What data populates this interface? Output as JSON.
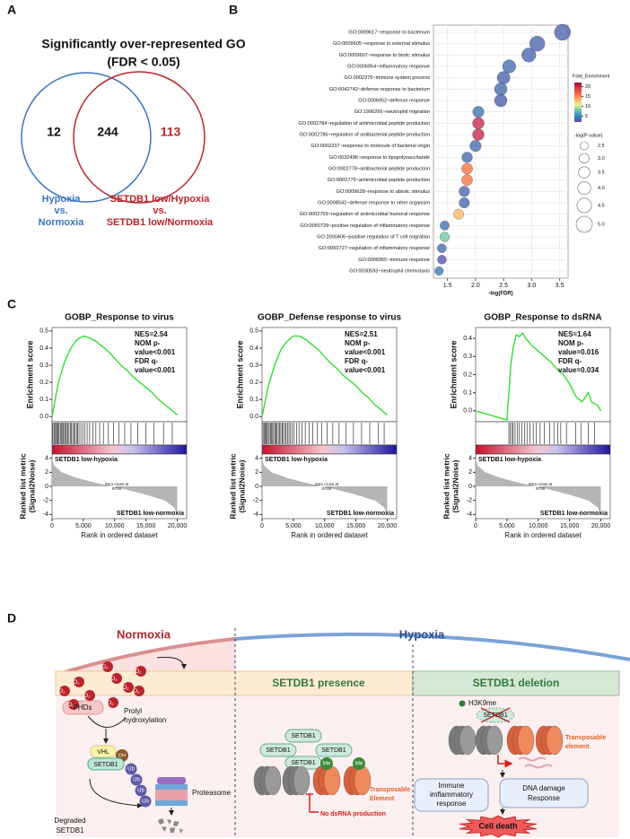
{
  "panel_labels": [
    "A",
    "B",
    "C",
    "D"
  ],
  "venn": {
    "title": "Significantly over-represented GO",
    "subtitle": "(FDR < 0.05)",
    "counts": [
      12,
      244,
      113
    ],
    "left_label": [
      "Hypoxia",
      "vs.",
      "Normoxia"
    ],
    "right_label": [
      "SETDB1 low/Hypoxia",
      "vs.",
      "SETDB1 low/Normoxia"
    ]
  },
  "chart_data": [
    {
      "type": "bubble",
      "categories": [
        "GO:0009617~response to bacterium",
        "GO:0009605~response to external stimulus",
        "GO:0009607~response to biotic stimulus",
        "GO:0006954~inflammatory response",
        "GO:0002376~immune system process",
        "GO:0042742~defense response to bacterium",
        "GO:0006952~defense response",
        "GO:1990266~neutrophil migration",
        "GO:0002784~regulation of antimicrobial peptide production",
        "GO:0002786~regulation of antibacterial peptide production",
        "GO:0002237~response to molecule of bacterial origin",
        "GO:0032496~response to lipopolysaccharide",
        "GO:0002778~antibacterial peptide production",
        "GO:0002775~antimicrobial peptide production",
        "GO:0009628~response to abiotic stimulus",
        "GO:0098542~defense response to other organism",
        "GO:0002759~regulation of antimicrobial humoral response",
        "GO:0050729~positive regulation of inflammatory response",
        "GO:2000406~positive regulation of T cell migration",
        "GO:0050727~regulation of inflammatory response",
        "GO:0006955~immune response",
        "GO:0030593~neutrophil chemotaxis"
      ],
      "values": [
        3.55,
        3.1,
        2.95,
        2.6,
        2.5,
        2.45,
        2.45,
        2.05,
        2.05,
        2.05,
        2.0,
        1.85,
        1.85,
        1.85,
        1.8,
        1.8,
        1.7,
        1.45,
        1.45,
        1.4,
        1.4,
        1.35
      ],
      "size": [
        5.0,
        4.7,
        4.4,
        4.1,
        4.0,
        3.9,
        3.9,
        3.5,
        3.6,
        3.6,
        3.5,
        3.3,
        3.4,
        3.4,
        3.3,
        3.2,
        3.2,
        2.9,
        3.0,
        2.8,
        2.8,
        2.7
      ],
      "fold_enrichment": [
        3,
        3.2,
        3.1,
        3.6,
        3,
        3.5,
        3,
        4,
        20,
        20,
        3.5,
        3.5,
        16,
        16,
        3.4,
        3.2,
        13,
        4,
        8,
        3.5,
        2.5,
        4
      ],
      "xlabel": "-log(FDR)",
      "xlim": [
        1.25,
        3.65
      ],
      "xticks": [
        1.5,
        {
          "value": 2,
          "label": "2.0"
        },
        2.5,
        {
          "value": 3,
          "label": "3.0"
        },
        3.5
      ],
      "grid": true,
      "color_title": "Fold_Enrichment",
      "clim": [
        2,
        22
      ],
      "cticks": [
        5,
        10,
        15,
        20
      ],
      "colormap": [
        "#5e4fa2",
        "#3288bd",
        "#66c2a5",
        "#e6f598",
        "#fdae61",
        "#f46d43",
        "#d53e4f",
        "#9e0142"
      ],
      "size_title": "-log(P-value)",
      "size_ticks": [
        2.5,
        {
          "value": 3,
          "label": "3.0"
        },
        3.5,
        {
          "value": 4,
          "label": "4.0"
        },
        4.5,
        {
          "value": 5,
          "label": "5.0"
        }
      ]
    },
    {
      "type": "gsea",
      "title": "GOBP_Response to virus",
      "stats": [
        "NES=2.54",
        "NOM p-",
        "value<0.001",
        "FDR q-",
        "value<0.001"
      ],
      "ylabel": "Enrichment score",
      "color": "#22dd22",
      "x": [
        0,
        1000,
        2000,
        3000,
        4000,
        5000,
        6000,
        7000,
        8000,
        9000,
        10000,
        11000,
        12000,
        13000,
        14000,
        15000,
        16000,
        17000,
        18000,
        19000,
        20000
      ],
      "values": [
        0,
        0.2,
        0.32,
        0.4,
        0.45,
        0.47,
        0.46,
        0.44,
        0.41,
        0.38,
        0.34,
        0.3,
        0.27,
        0.23,
        0.2,
        0.17,
        0.14,
        0.1,
        0.07,
        0.04,
        0.01
      ],
      "ylim": [
        -0.03,
        0.52
      ],
      "yticks": [
        {
          "value": 0,
          "label": "0.0"
        },
        0.1,
        0.2,
        0.3,
        0.4,
        0.5
      ],
      "hits": [
        120,
        300,
        450,
        600,
        800,
        950,
        1100,
        1300,
        1450,
        1600,
        1800,
        2000,
        2150,
        2300,
        2500,
        2700,
        2900,
        3100,
        3300,
        3500,
        3700,
        3900,
        4100,
        4300,
        4600,
        4900,
        5200,
        5600,
        6000,
        6500,
        7000,
        7600,
        8200,
        9000,
        9800,
        10700,
        11600,
        12600,
        13700,
        15000,
        16300,
        17800,
        19200
      ],
      "metric_ylabel": [
        "Ranked list metric",
        "(Signal2Noise)"
      ],
      "metric_x": [
        0,
        300,
        1500,
        4000,
        7000,
        9708,
        12000,
        15000,
        18000,
        19500,
        20000
      ],
      "metric_values": [
        4,
        3,
        2,
        1.2,
        0.5,
        0,
        -0.5,
        -1.2,
        -2,
        -3,
        -4
      ],
      "metric_ylim": [
        -4.6,
        4.6
      ],
      "metric_yticks": [
        4,
        2,
        0,
        -2,
        -4
      ],
      "zero_cross": [
        "Zero cross at",
        "9708"
      ],
      "pos_label": "SETDB1 low-hypoxia",
      "neg_label": "SETDB1 low-normoxia",
      "xlabel": "Rank in ordered dataset",
      "xlim": [
        0,
        21500
      ],
      "xticks": [
        0,
        {
          "value": 5000,
          "label": "5,000"
        },
        {
          "value": 10000,
          "label": "10,000"
        },
        {
          "value": 15000,
          "label": "15,000"
        },
        {
          "value": 20000,
          "label": "20,000"
        }
      ]
    },
    {
      "type": "gsea",
      "title": "GOBP_Defense response to virus",
      "stats": [
        "NES=2.51",
        "NOM p-",
        "value<0.001",
        "FDR q-",
        "value<0.001"
      ],
      "ylabel": "Enrichment score",
      "color": "#22dd22",
      "x": [
        0,
        1000,
        2000,
        3000,
        4000,
        5000,
        6000,
        7000,
        8000,
        9000,
        10000,
        11000,
        12000,
        13000,
        14000,
        15000,
        16000,
        17000,
        18000,
        19000,
        20000
      ],
      "values": [
        0,
        0.18,
        0.3,
        0.39,
        0.44,
        0.47,
        0.47,
        0.45,
        0.42,
        0.39,
        0.35,
        0.31,
        0.28,
        0.24,
        0.21,
        0.18,
        0.14,
        0.11,
        0.07,
        0.04,
        0.01
      ],
      "ylim": [
        -0.03,
        0.52
      ],
      "yticks": [
        {
          "value": 0,
          "label": "0.0"
        },
        0.1,
        0.2,
        0.3,
        0.4,
        0.5
      ],
      "hits": [
        150,
        320,
        500,
        650,
        820,
        1000,
        1150,
        1350,
        1500,
        1700,
        1850,
        2050,
        2200,
        2400,
        2600,
        2800,
        3000,
        3200,
        3400,
        3650,
        3850,
        4050,
        4300,
        4550,
        4800,
        5100,
        5500,
        5900,
        6400,
        6900,
        7500,
        8100,
        8800,
        9500,
        10400,
        11300,
        12300,
        13400,
        14600,
        15900,
        17200,
        18600,
        19500
      ],
      "metric_ylabel": [
        "Ranked list metric",
        "(Signal2Noise)"
      ],
      "metric_x": [
        0,
        300,
        1500,
        4000,
        7000,
        9708,
        12000,
        15000,
        18000,
        19500,
        20000
      ],
      "metric_values": [
        4,
        3,
        2,
        1.2,
        0.5,
        0,
        -0.5,
        -1.2,
        -2,
        -3,
        -4
      ],
      "metric_ylim": [
        -4.6,
        4.6
      ],
      "metric_yticks": [
        4,
        2,
        0,
        -2,
        -4
      ],
      "zero_cross": [
        "Zero cross at",
        "9708"
      ],
      "pos_label": "SETDB1 low-hypoxia",
      "neg_label": "SETDB1 low-normoxia",
      "xlabel": "Rank in ordered dataset",
      "xlim": [
        0,
        21500
      ],
      "xticks": [
        0,
        {
          "value": 5000,
          "label": "5,000"
        },
        {
          "value": 10000,
          "label": "10,000"
        },
        {
          "value": 15000,
          "label": "15,000"
        },
        {
          "value": 20000,
          "label": "20,000"
        }
      ]
    },
    {
      "type": "gsea",
      "title": "GOBP_Response to dsRNA",
      "stats": [
        "NES=1.64",
        "NOM p-",
        "value=0.016",
        "FDR q-",
        "value=0.034"
      ],
      "ylabel": "Enrichment score",
      "color": "#22dd22",
      "x": [
        0,
        2000,
        4000,
        5000,
        5300,
        5600,
        6000,
        6500,
        7000,
        7500,
        8000,
        9000,
        10000,
        11000,
        12000,
        13000,
        14000,
        15000,
        16000,
        17000,
        18000,
        18500,
        19500,
        20000
      ],
      "values": [
        0,
        -0.02,
        -0.04,
        -0.05,
        0.1,
        0.25,
        0.35,
        0.42,
        0.41,
        0.43,
        0.4,
        0.36,
        0.33,
        0.3,
        0.27,
        0.23,
        0.2,
        0.15,
        0.08,
        0.05,
        0.1,
        0.05,
        0.03,
        0
      ],
      "ylim": [
        -0.06,
        0.46
      ],
      "yticks": [
        {
          "value": 0,
          "label": "0.0"
        },
        0.1,
        0.2,
        0.3,
        0.4
      ],
      "hits": [
        5300,
        5500,
        5800,
        6000,
        6300,
        6700,
        7000,
        7400,
        7800,
        8200,
        8700,
        9200,
        9700,
        10300,
        11000,
        11800,
        12500,
        13100,
        13600,
        14500,
        16000,
        16800,
        18000,
        19000
      ],
      "metric_ylabel": [
        "Ranked list metric",
        "(Signal2Noise)"
      ],
      "metric_x": [
        0,
        300,
        1500,
        4000,
        7000,
        9708,
        12000,
        15000,
        18000,
        19500,
        20000
      ],
      "metric_values": [
        4,
        3,
        2,
        1.2,
        0.5,
        0,
        -0.5,
        -1.2,
        -2,
        -3,
        -4
      ],
      "metric_ylim": [
        -4.6,
        4.6
      ],
      "metric_yticks": [
        4,
        2,
        0,
        -2,
        -4
      ],
      "zero_cross": [
        "Zero cross at",
        "9708"
      ],
      "pos_label": "SETDB1 low-hypoxia",
      "neg_label": "SETDB1 low-normoxia",
      "xlabel": "Rank in ordered dataset",
      "xlim": [
        0,
        21500
      ],
      "xticks": [
        0,
        {
          "value": 5000,
          "label": "5,000"
        },
        {
          "value": 10000,
          "label": "10,000"
        },
        {
          "value": 15000,
          "label": "15,000"
        },
        {
          "value": 20000,
          "label": "20,000"
        }
      ]
    }
  ],
  "diagram": {
    "normoxia": "Normoxia",
    "hypoxia": "Hypoxia",
    "presence": "SETDB1 presence",
    "deletion": "SETDB1 deletion",
    "o2": {
      "symbol": "O",
      "sub": "2"
    },
    "phds": "PHDs",
    "prolyl": [
      "Prolyl",
      "hydroxylation"
    ],
    "vhl": "VHL",
    "oh": "OH",
    "setdb1": "SETDB1",
    "ub": "Ub",
    "proteasome": "Proteasome",
    "degraded": [
      "Degraded",
      "SETDB1"
    ],
    "h3k9me": "H3K9me",
    "me": "Me",
    "te_middle": [
      "Transposable",
      "Element"
    ],
    "no_dsrna": "No dsRNA production",
    "te_right": [
      "Transposable",
      "element"
    ],
    "immune": [
      "Immune",
      "imflammatory",
      "response"
    ],
    "dna": [
      "DNA damage",
      "Response"
    ],
    "cell_death": "Cell death"
  }
}
